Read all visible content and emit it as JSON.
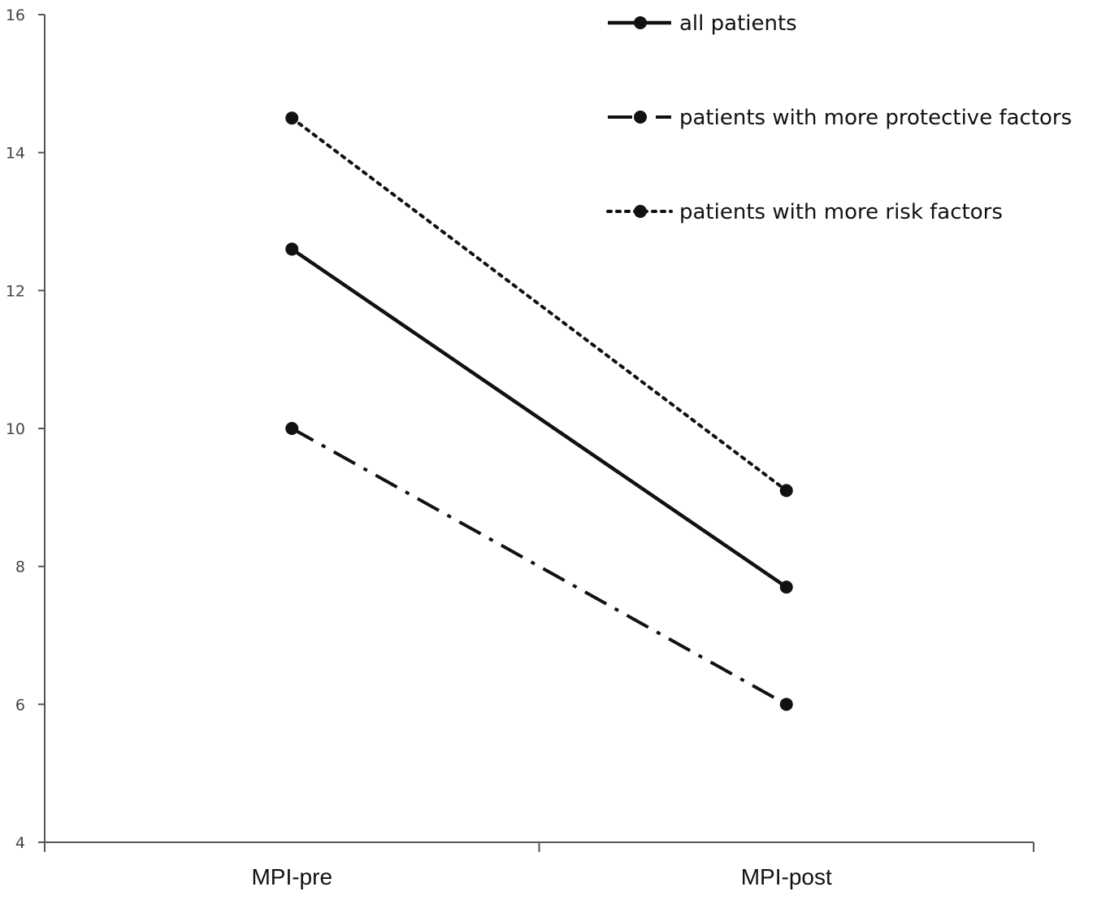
{
  "chart_data": {
    "type": "line",
    "title": "",
    "xlabel": "",
    "ylabel": "",
    "categories": [
      "MPI-pre",
      "MPI-post"
    ],
    "ylim": [
      4,
      16
    ],
    "yticks": [
      "4",
      "6",
      "8",
      "10",
      "12",
      "14",
      "16"
    ],
    "grid": false,
    "legend_position": "top-right",
    "series": [
      {
        "name": "all patients",
        "values": [
          12.6,
          7.7
        ],
        "line_style": "solid",
        "color": "#111111"
      },
      {
        "name": "patients with more protective factors",
        "values": [
          10.0,
          6.0
        ],
        "line_style": "dash-dot",
        "color": "#111111"
      },
      {
        "name": "patients with more risk factors",
        "values": [
          14.5,
          9.1
        ],
        "line_style": "dotted",
        "color": "#111111"
      }
    ]
  }
}
